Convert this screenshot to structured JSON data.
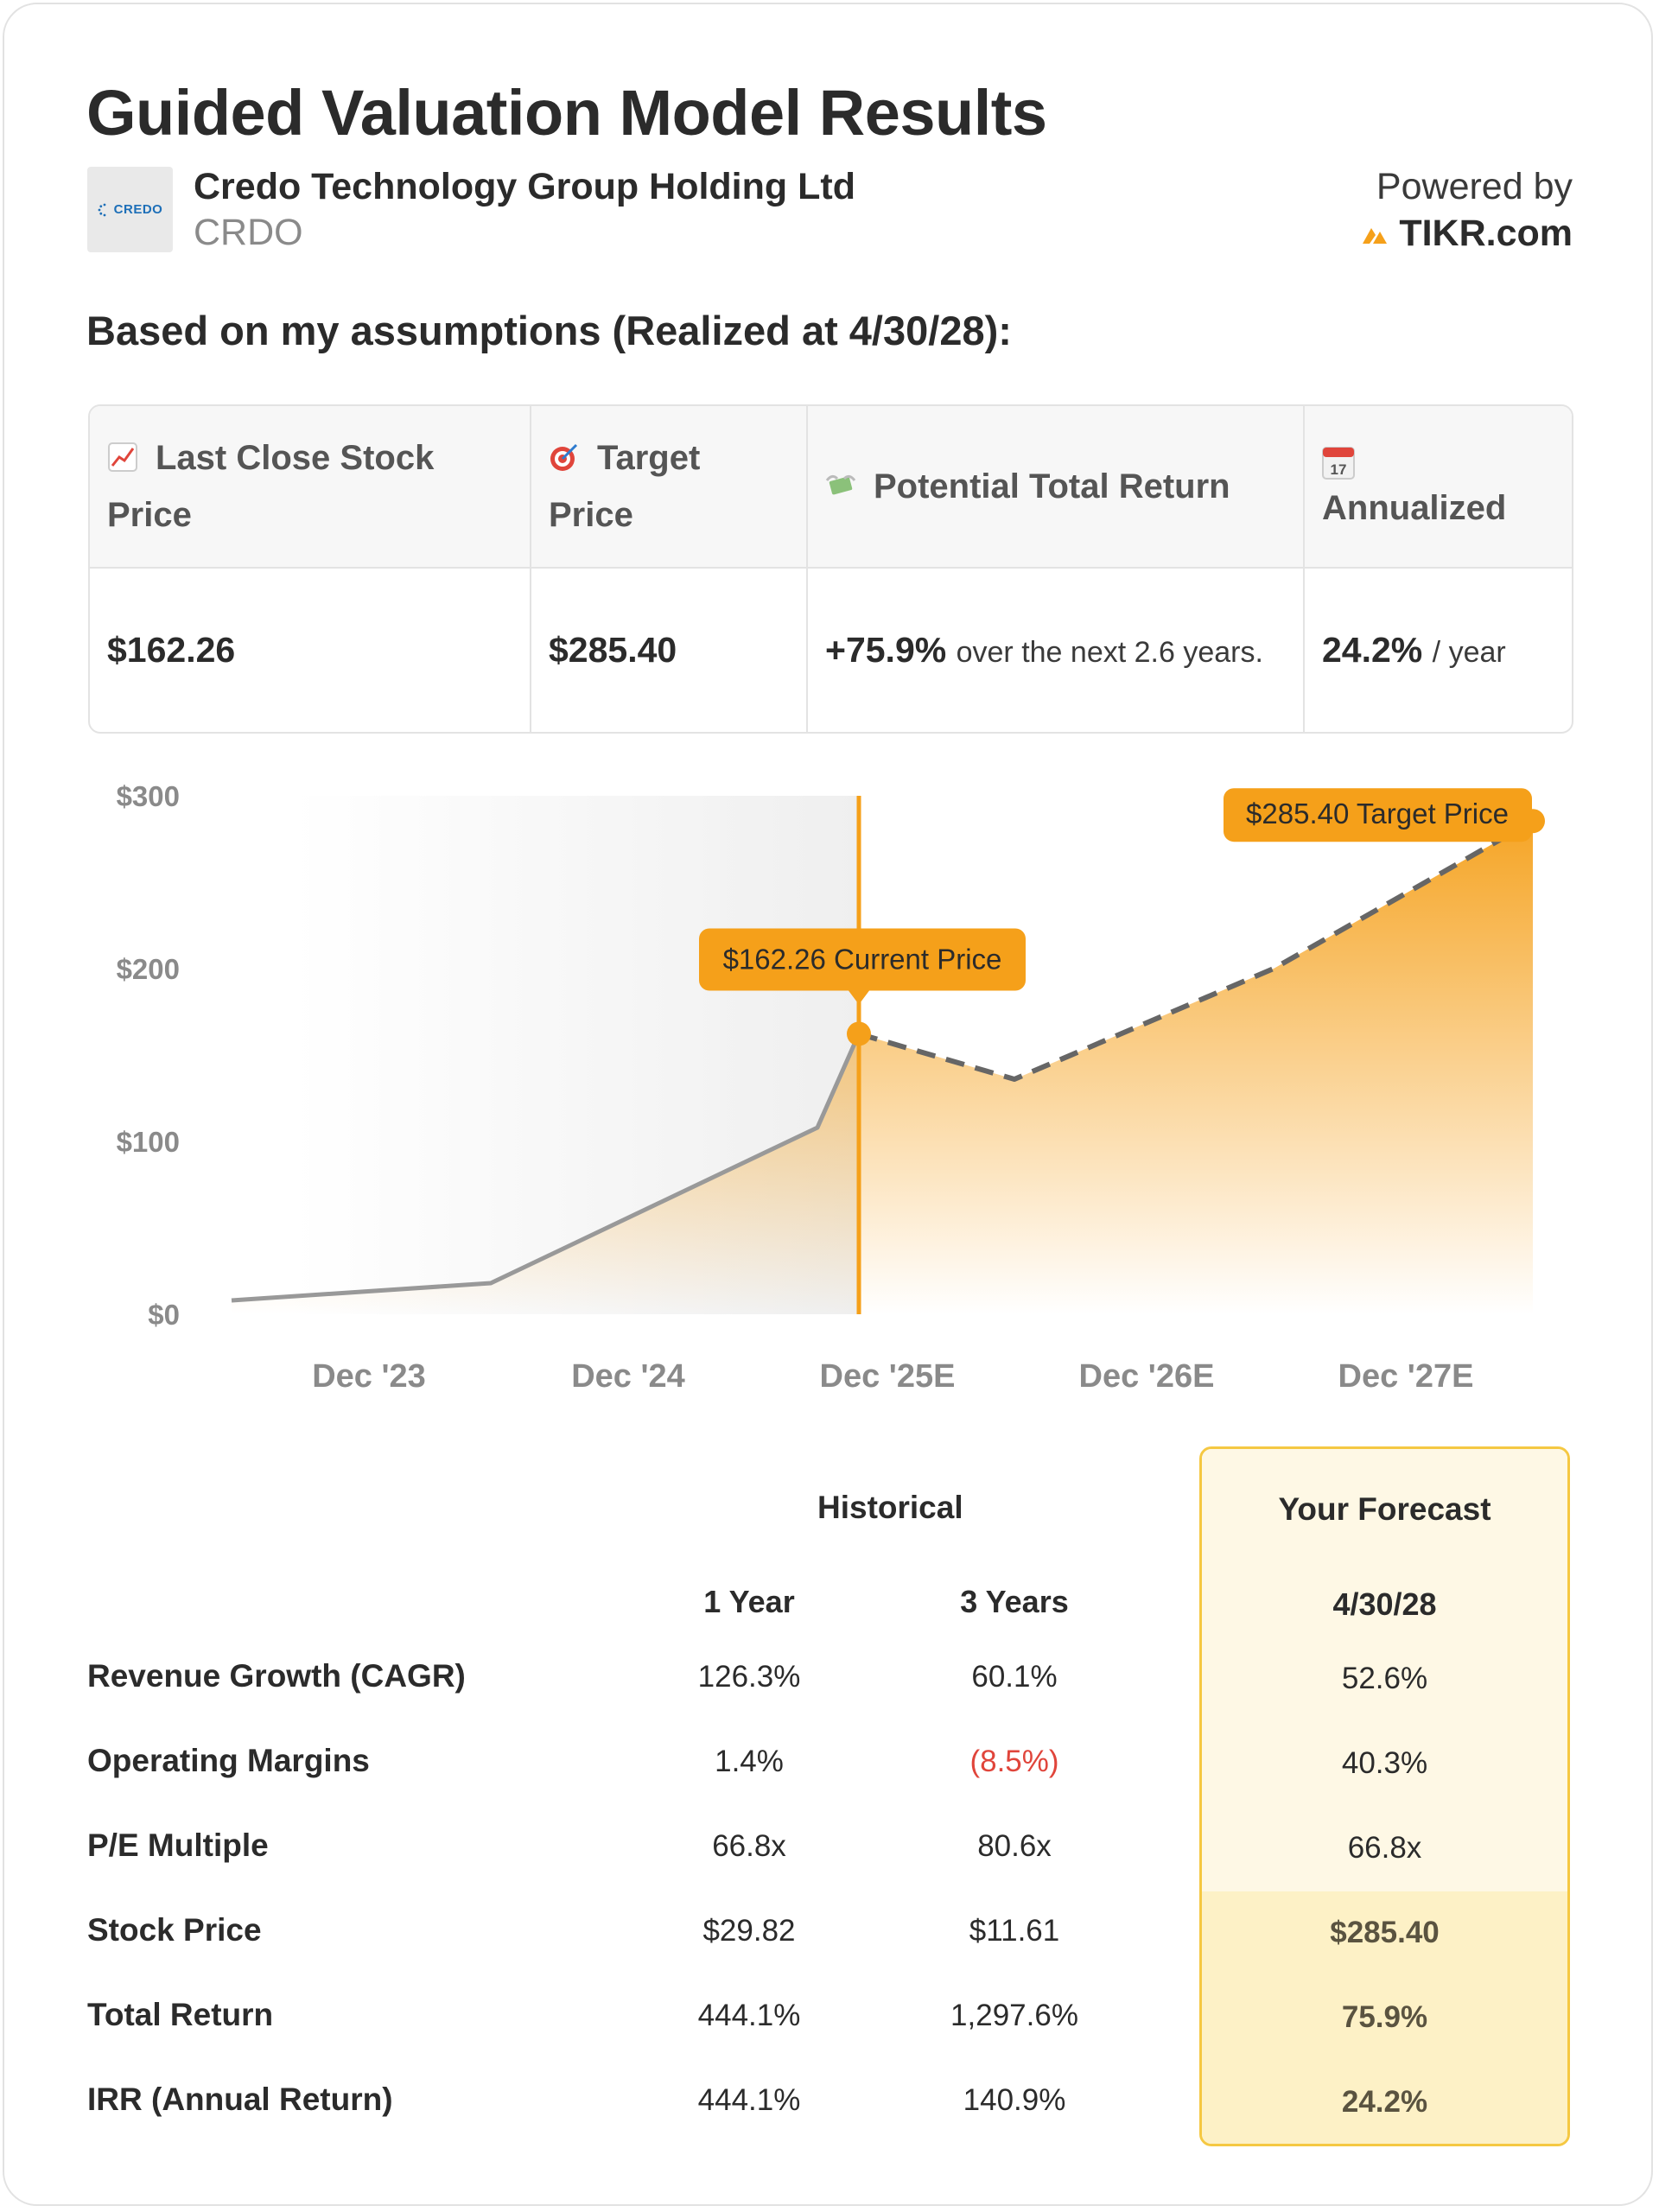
{
  "header": {
    "title": "Guided Valuation Model Results",
    "logo_text": "CREDO",
    "company_name": "Credo Technology Group Holding Ltd",
    "ticker": "CRDO",
    "powered_by": "Powered by",
    "brand": "TIKR.com",
    "assumptions": "Based on my assumptions (Realized at 4/30/28):"
  },
  "summary": {
    "headers": {
      "last_close": "Last Close Stock Price",
      "target": "Target Price",
      "total_return": "Potential Total Return",
      "annualized": "Annualized"
    },
    "icons": {
      "last_close": "chart-increasing-icon",
      "target": "target-icon",
      "total_return": "money-with-wings-icon",
      "annualized": "calendar-icon"
    },
    "calendar_day": "17",
    "last_close_value": "$162.26",
    "target_value": "$285.40",
    "total_return_value": "+75.9%",
    "total_return_note": "over the next 2.6 years.",
    "annualized_value": "24.2%",
    "annualized_unit": "/ year"
  },
  "chart_data": {
    "type": "area",
    "x_ticks": [
      "Dec '23",
      "Dec '24",
      "Dec '25E",
      "Dec '26E",
      "Dec '27E"
    ],
    "y_ticks": [
      "$0",
      "$100",
      "$200",
      "$300"
    ],
    "ylim": [
      0,
      300
    ],
    "historical": {
      "x": [
        -0.53,
        0.47,
        1.73,
        1.89
      ],
      "y": [
        8,
        18,
        108,
        162.26
      ]
    },
    "forecast": {
      "x": [
        1.89,
        2.49,
        3.49,
        4.49
      ],
      "y": [
        162.26,
        136,
        200,
        285.4
      ]
    },
    "current_price_label": "$162.26 Current Price",
    "target_price_label": "$285.40 Target Price",
    "colors": {
      "accent": "#f5a01a",
      "historical_line": "#999999",
      "forecast_line": "#666666"
    }
  },
  "metrics": {
    "historical_header": "Historical",
    "forecast_header": "Your Forecast",
    "col_1y": "1 Year",
    "col_3y": "3 Years",
    "col_fc": "4/30/28",
    "rows": [
      {
        "label": "Revenue Growth (CAGR)",
        "y1": "126.3%",
        "y3": "60.1%",
        "fc": "52.6%"
      },
      {
        "label": "Operating Margins",
        "y1": "1.4%",
        "y3": "(8.5%)",
        "fc": "40.3%"
      },
      {
        "label": "P/E Multiple",
        "y1": "66.8x",
        "y3": "80.6x",
        "fc": "66.8x"
      },
      {
        "label": "Stock Price",
        "y1": "$29.82",
        "y3": "$11.61",
        "fc": "$285.40"
      },
      {
        "label": "Total Return",
        "y1": "444.1%",
        "y3": "1,297.6%",
        "fc": "75.9%"
      },
      {
        "label": "IRR (Annual Return)",
        "y1": "444.1%",
        "y3": "140.9%",
        "fc": "24.2%"
      }
    ]
  }
}
